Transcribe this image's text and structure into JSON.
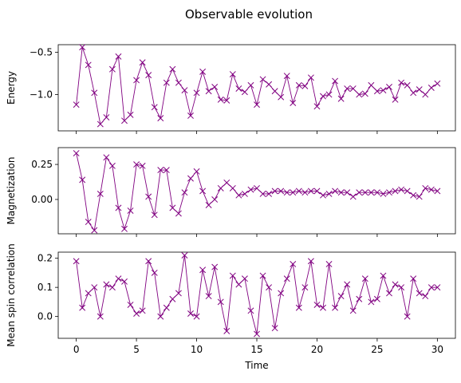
{
  "figure": {
    "suptitle": "Observable evolution"
  },
  "chart_data": [
    {
      "type": "line",
      "marker": "x",
      "color": "#800080",
      "ylabel": "Energy",
      "xlabel": "",
      "xlim": [
        -1.5,
        31.5
      ],
      "ylim": [
        -1.43,
        -0.41
      ],
      "xticks": [
        0,
        5,
        10,
        15,
        20,
        25,
        30
      ],
      "yticks": [
        -0.5,
        -1.0
      ],
      "ytick_labels": [
        "−0.5",
        "−1.0"
      ],
      "show_xtick_labels": false,
      "x": [
        0,
        0.5,
        1,
        1.5,
        2,
        2.5,
        3,
        3.5,
        4,
        4.5,
        5,
        5.5,
        6,
        6.5,
        7,
        7.5,
        8,
        8.5,
        9,
        9.5,
        10,
        10.5,
        11,
        11.5,
        12,
        12.5,
        13,
        13.5,
        14,
        14.5,
        15,
        15.5,
        16,
        16.5,
        17,
        17.5,
        18,
        18.5,
        19,
        19.5,
        20,
        20.5,
        21,
        21.5,
        22,
        22.5,
        23,
        23.5,
        24,
        24.5,
        25,
        25.5,
        26,
        26.5,
        27,
        27.5,
        28,
        28.5,
        29,
        29.5,
        30
      ],
      "y": [
        -1.12,
        -0.44,
        -0.65,
        -0.98,
        -1.35,
        -1.27,
        -0.7,
        -0.55,
        -1.31,
        -1.24,
        -0.83,
        -0.62,
        -0.77,
        -1.15,
        -1.28,
        -0.86,
        -0.7,
        -0.86,
        -0.95,
        -1.25,
        -0.98,
        -0.73,
        -0.96,
        -0.91,
        -1.06,
        -1.07,
        -0.76,
        -0.93,
        -0.97,
        -0.89,
        -1.12,
        -0.82,
        -0.88,
        -0.96,
        -1.03,
        -0.78,
        -1.1,
        -0.89,
        -0.9,
        -0.8,
        -1.14,
        -1.02,
        -1.0,
        -0.84,
        -1.05,
        -0.93,
        -0.93,
        -1.0,
        -0.99,
        -0.89,
        -0.96,
        -0.95,
        -0.91,
        -1.06,
        -0.86,
        -0.89,
        -0.98,
        -0.94,
        -1.0,
        -0.92,
        -0.87
      ]
    },
    {
      "type": "line",
      "marker": "x",
      "color": "#800080",
      "ylabel": "Magnetization",
      "xlabel": "",
      "xlim": [
        -1.5,
        31.5
      ],
      "ylim": [
        -0.245,
        0.37
      ],
      "xticks": [
        0,
        5,
        10,
        15,
        20,
        25,
        30
      ],
      "yticks": [
        0.25,
        0.0
      ],
      "ytick_labels": [
        "0.25",
        "0.00"
      ],
      "show_xtick_labels": false,
      "x": [
        0,
        0.5,
        1,
        1.5,
        2,
        2.5,
        3,
        3.5,
        4,
        4.5,
        5,
        5.5,
        6,
        6.5,
        7,
        7.5,
        8,
        8.5,
        9,
        9.5,
        10,
        10.5,
        11,
        11.5,
        12,
        12.5,
        13,
        13.5,
        14,
        14.5,
        15,
        15.5,
        16,
        16.5,
        17,
        17.5,
        18,
        18.5,
        19,
        19.5,
        20,
        20.5,
        21,
        21.5,
        22,
        22.5,
        23,
        23.5,
        24,
        24.5,
        25,
        25.5,
        26,
        26.5,
        27,
        27.5,
        28,
        28.5,
        29,
        29.5,
        30
      ],
      "y": [
        0.33,
        0.14,
        -0.16,
        -0.22,
        0.04,
        0.3,
        0.24,
        -0.06,
        -0.21,
        -0.08,
        0.25,
        0.24,
        0.02,
        -0.11,
        0.21,
        0.21,
        -0.06,
        -0.1,
        0.05,
        0.15,
        0.2,
        0.06,
        -0.04,
        0.0,
        0.08,
        0.12,
        0.08,
        0.03,
        0.04,
        0.07,
        0.08,
        0.04,
        0.04,
        0.06,
        0.06,
        0.05,
        0.05,
        0.06,
        0.05,
        0.06,
        0.06,
        0.03,
        0.04,
        0.06,
        0.05,
        0.05,
        0.02,
        0.05,
        0.05,
        0.05,
        0.05,
        0.04,
        0.05,
        0.06,
        0.07,
        0.06,
        0.03,
        0.02,
        0.08,
        0.07,
        0.06
      ]
    },
    {
      "type": "line",
      "marker": "x",
      "color": "#800080",
      "ylabel": "Mean spin correlation",
      "xlabel": "Time",
      "xlim": [
        -1.5,
        31.5
      ],
      "ylim": [
        -0.075,
        0.221
      ],
      "xticks": [
        0,
        5,
        10,
        15,
        20,
        25,
        30
      ],
      "xtick_labels": [
        "0",
        "5",
        "10",
        "15",
        "20",
        "25",
        "30"
      ],
      "yticks": [
        0.2,
        0.1,
        0.0
      ],
      "ytick_labels": [
        "0.2",
        "0.1",
        "0.0"
      ],
      "show_xtick_labels": true,
      "x": [
        0,
        0.5,
        1,
        1.5,
        2,
        2.5,
        3,
        3.5,
        4,
        4.5,
        5,
        5.5,
        6,
        6.5,
        7,
        7.5,
        8,
        8.5,
        9,
        9.5,
        10,
        10.5,
        11,
        11.5,
        12,
        12.5,
        13,
        13.5,
        14,
        14.5,
        15,
        15.5,
        16,
        16.5,
        17,
        17.5,
        18,
        18.5,
        19,
        19.5,
        20,
        20.5,
        21,
        21.5,
        22,
        22.5,
        23,
        23.5,
        24,
        24.5,
        25,
        25.5,
        26,
        26.5,
        27,
        27.5,
        28,
        28.5,
        29,
        29.5,
        30
      ],
      "y": [
        0.19,
        0.03,
        0.08,
        0.1,
        0.0,
        0.11,
        0.1,
        0.13,
        0.12,
        0.04,
        0.01,
        0.02,
        0.19,
        0.15,
        0.0,
        0.03,
        0.06,
        0.08,
        0.21,
        0.01,
        0.0,
        0.16,
        0.07,
        0.17,
        0.05,
        -0.05,
        0.14,
        0.11,
        0.13,
        0.02,
        -0.06,
        0.14,
        0.1,
        -0.04,
        0.08,
        0.13,
        0.18,
        0.03,
        0.1,
        0.19,
        0.04,
        0.03,
        0.18,
        0.03,
        0.07,
        0.11,
        0.02,
        0.06,
        0.13,
        0.05,
        0.06,
        0.14,
        0.08,
        0.11,
        0.1,
        0.0,
        0.13,
        0.08,
        0.07,
        0.1,
        0.1
      ]
    }
  ]
}
